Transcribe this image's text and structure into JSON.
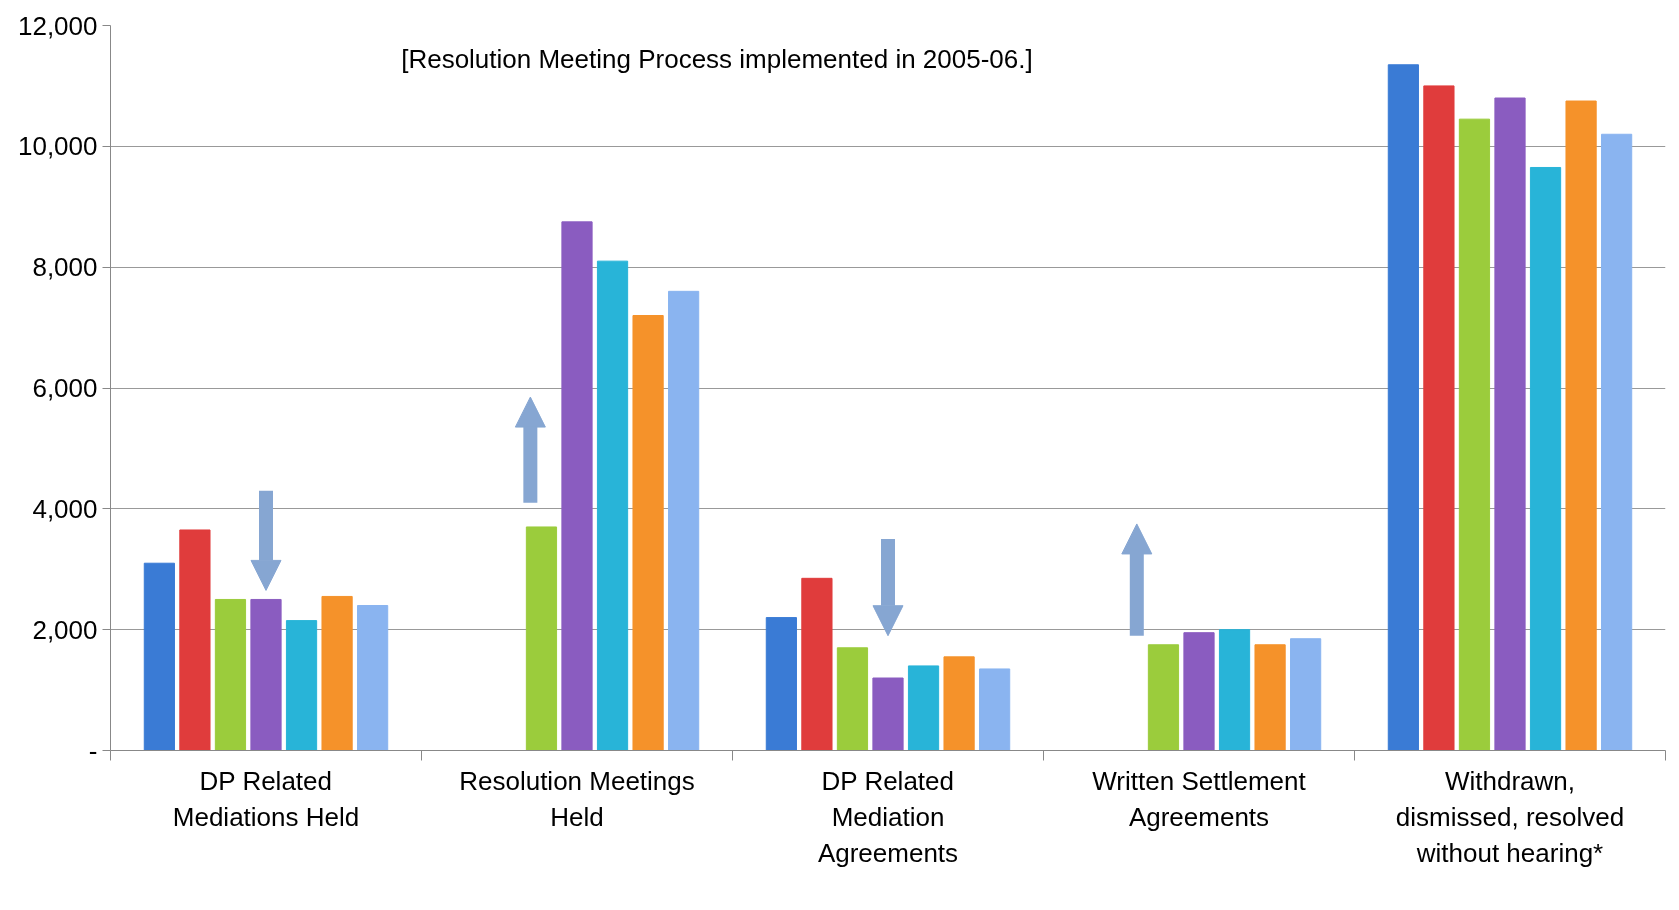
{
  "chart_data": {
    "type": "bar",
    "categories": [
      "DP Related Mediations Held",
      "Resolution Meetings Held",
      "DP Related Mediation Agreements",
      "Written Settlement Agreements",
      "Withdrawn, dismissed, resolved without hearing*"
    ],
    "series": [
      {
        "color": "#3a7bd5",
        "values": [
          3100,
          0,
          2200,
          0,
          11350
        ]
      },
      {
        "color": "#e03c3c",
        "values": [
          3650,
          0,
          2850,
          0,
          11000
        ]
      },
      {
        "color": "#9bcc3c",
        "values": [
          2500,
          3700,
          1700,
          1750,
          10450
        ]
      },
      {
        "color": "#8a5cc0",
        "values": [
          2500,
          8750,
          1200,
          1950,
          10800
        ]
      },
      {
        "color": "#28b4d8",
        "values": [
          2150,
          8100,
          1400,
          2000,
          9650
        ]
      },
      {
        "color": "#f5922a",
        "values": [
          2550,
          7200,
          1550,
          1750,
          10750
        ]
      },
      {
        "color": "#8ab4f0",
        "values": [
          2400,
          7600,
          1350,
          1850,
          10200
        ]
      }
    ],
    "ylim": [
      0,
      12000
    ],
    "yticks": [
      {
        "value": 0,
        "label": "-"
      },
      {
        "value": 2000,
        "label": "2,000"
      },
      {
        "value": 4000,
        "label": "4,000"
      },
      {
        "value": 6000,
        "label": "6,000"
      },
      {
        "value": 8000,
        "label": "8,000"
      },
      {
        "value": 10000,
        "label": "10,000"
      },
      {
        "value": 12000,
        "label": "12,000"
      }
    ],
    "grid": "y",
    "annotations": [
      "[Resolution Meeting Process implemented in 2005-06.]"
    ]
  }
}
